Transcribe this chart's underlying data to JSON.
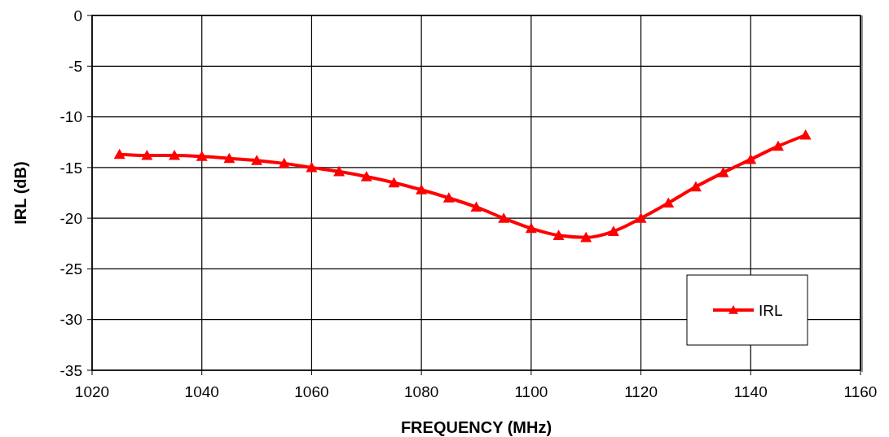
{
  "chart_data": {
    "type": "line",
    "xlabel": "FREQUENCY (MHz)",
    "ylabel": "IRL (dB)",
    "x": [
      1025,
      1030,
      1035,
      1040,
      1045,
      1050,
      1055,
      1060,
      1065,
      1070,
      1075,
      1080,
      1085,
      1090,
      1095,
      1100,
      1105,
      1110,
      1115,
      1120,
      1125,
      1130,
      1135,
      1140,
      1145,
      1150
    ],
    "series": [
      {
        "name": "IRL",
        "color": "#ff0000",
        "values": [
          -13.7,
          -13.8,
          -13.8,
          -13.9,
          -14.1,
          -14.3,
          -14.6,
          -15.0,
          -15.4,
          -15.9,
          -16.5,
          -17.2,
          -18.0,
          -18.9,
          -20.0,
          -21.0,
          -21.7,
          -21.9,
          -21.3,
          -20.0,
          -18.5,
          -16.9,
          -15.5,
          -14.2,
          -12.9,
          -11.8
        ]
      }
    ],
    "xlim": [
      1020,
      1160
    ],
    "xticks": [
      1020,
      1040,
      1060,
      1080,
      1100,
      1120,
      1140,
      1160
    ],
    "ylim": [
      -35,
      0
    ],
    "yticks": [
      -35,
      -30,
      -25,
      -20,
      -15,
      -10,
      -5,
      0
    ],
    "grid": true,
    "legend": "bottom right",
    "marker": "triangle",
    "line_style": "solid"
  }
}
